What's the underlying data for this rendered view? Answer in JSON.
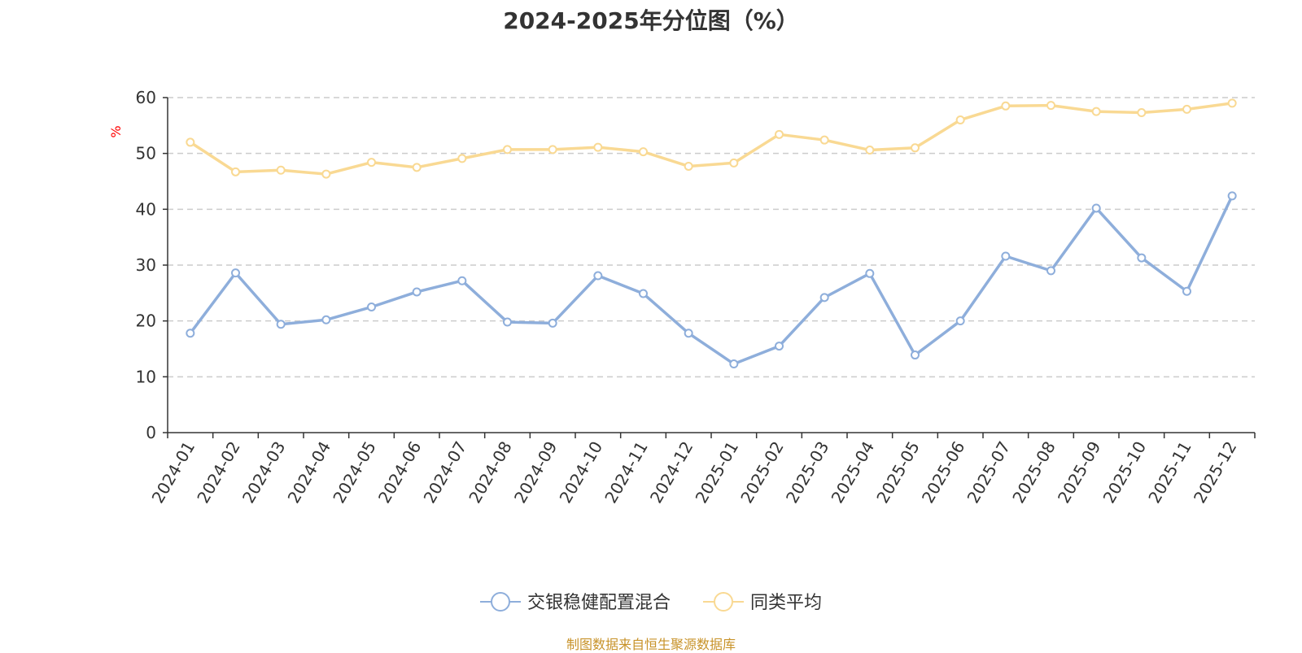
{
  "chart_data": {
    "type": "line",
    "title": "2024-2025年分位图（%）",
    "ylabel": "%",
    "xlabel": "",
    "ylim": [
      0,
      60
    ],
    "yticks": [
      0,
      10,
      20,
      30,
      40,
      50,
      60
    ],
    "grid": true,
    "legend_position": "bottom-center",
    "categories": [
      "2024-01",
      "2024-02",
      "2024-03",
      "2024-04",
      "2024-05",
      "2024-06",
      "2024-07",
      "2024-08",
      "2024-09",
      "2024-10",
      "2024-11",
      "2024-12",
      "2025-01",
      "2025-02",
      "2025-03",
      "2025-04",
      "2025-05",
      "2025-06",
      "2025-07",
      "2025-08",
      "2025-09",
      "2025-10",
      "2025-11",
      "2025-12"
    ],
    "series": [
      {
        "name": "交银稳健配置混合",
        "color": "#8eaedb",
        "values": [
          17.8,
          28.6,
          19.4,
          20.2,
          22.5,
          25.2,
          27.2,
          19.8,
          19.6,
          28.1,
          24.9,
          17.8,
          12.3,
          15.5,
          24.2,
          28.5,
          13.9,
          20.0,
          31.6,
          29.0,
          40.2,
          31.3,
          25.3,
          42.4
        ]
      },
      {
        "name": "同类平均",
        "color": "#f9d993",
        "values": [
          52.0,
          46.7,
          47.0,
          46.3,
          48.4,
          47.5,
          49.1,
          50.7,
          50.7,
          51.1,
          50.3,
          47.7,
          48.3,
          53.4,
          52.4,
          50.6,
          51.0,
          56.0,
          58.5,
          58.6,
          57.5,
          57.3,
          57.9,
          59.0
        ]
      }
    ]
  },
  "source_note": "制图数据来自恒生聚源数据库",
  "colors": {
    "axis": "#333333",
    "grid": "#cccccc",
    "ylabel": "#ff0000",
    "source": "#c8932a"
  }
}
